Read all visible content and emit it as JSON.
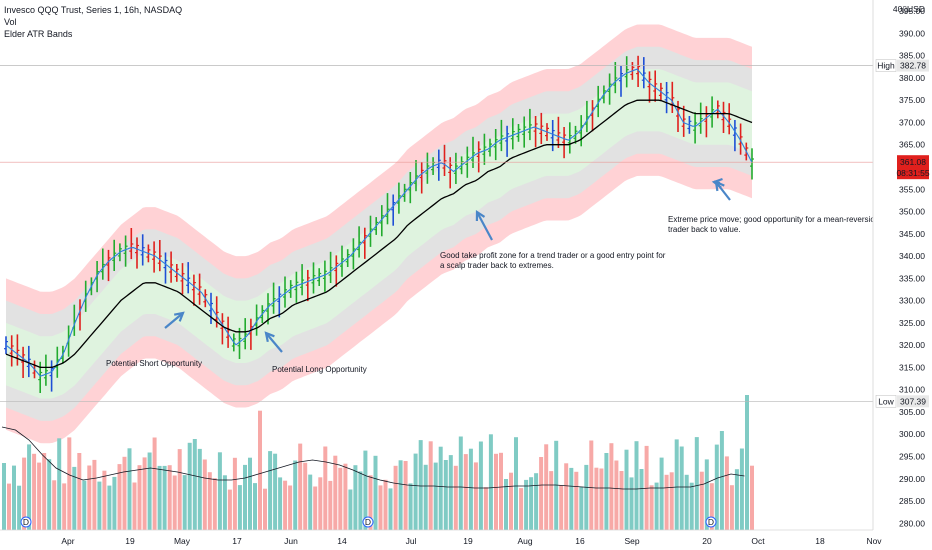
{
  "legend": {
    "symbol_line": "Invesco QQQ Trust, Series 1, 16h, NASDAQ",
    "indicator_1": "Vol",
    "indicator_2": "Elder ATR Bands"
  },
  "price_axis": {
    "currency": "USD",
    "currency_top_text": "40",
    "ticks": [
      390,
      385,
      380,
      375,
      370,
      365,
      360,
      355,
      350,
      345,
      340,
      335,
      330,
      325,
      320,
      315,
      310,
      305,
      300,
      295,
      290,
      285,
      280
    ],
    "top_cut_tick": "395.00",
    "range": [
      278.5,
      397.5
    ]
  },
  "markers": {
    "high_label": "High",
    "high_value": "382.78",
    "low_label": "Low",
    "low_value": "307.39",
    "last_price": "361.08",
    "countdown": "08:31:55"
  },
  "time_axis": {
    "labels": [
      "Apr",
      "19",
      "May",
      "17",
      "Jun",
      "14",
      "Jul",
      "19",
      "Aug",
      "16",
      "Sep",
      "20",
      "Oct",
      "18",
      "Nov"
    ]
  },
  "annotations": [
    {
      "text_lines": [
        "Potential Short Opportunity"
      ]
    },
    {
      "text_lines": [
        "Potential Long Opportunity"
      ]
    },
    {
      "text_lines": [
        "Good take profit zone for a trend trader or a good entry point for",
        "a scalp trader back to extremes."
      ]
    },
    {
      "text_lines": [
        "Extreme price move; good opportunity for a mean-reversion",
        "trader back to value."
      ]
    }
  ],
  "event_markers": [
    "D",
    "D",
    "D"
  ],
  "colors": {
    "up_bar": "#22ab2e",
    "down_bar": "#e0201d",
    "neutral_bar": "#1e4fd6",
    "ema_fast": "#2f7fe0",
    "ema_slow": "#000000",
    "band_inner": "#dff3df",
    "band_outer": "#ffcdd0",
    "band_gray": "#e2e2e2",
    "vol_up": "#80cbc4",
    "vol_down": "#f7a9a7",
    "arrow": "#4a86c8",
    "last_price_bg": "#e0201d"
  },
  "chart_data": {
    "type": "line",
    "series": [
      {
        "values": [
          320,
          318,
          316,
          313,
          314,
          318,
          325,
          331,
          336,
          339,
          341,
          342,
          341,
          340,
          338,
          336,
          334,
          332,
          328,
          324,
          320,
          322,
          326,
          329,
          331,
          333,
          334,
          335,
          336,
          338,
          340,
          343,
          346,
          349,
          352,
          355,
          358,
          360,
          361,
          359,
          361,
          363,
          364,
          366,
          367,
          368,
          369,
          368,
          367,
          366,
          368,
          372,
          376,
          379,
          381,
          382,
          379,
          377,
          375,
          370,
          369,
          371,
          373,
          370,
          366,
          361
        ]
      },
      {
        "values": [
          318,
          317,
          316,
          315,
          315,
          316,
          318,
          321,
          324,
          327,
          330,
          332,
          334,
          334,
          333,
          332,
          330,
          328,
          326,
          324,
          323,
          323,
          324,
          326,
          327,
          329,
          330,
          331,
          332,
          334,
          336,
          338,
          340,
          342,
          344,
          347,
          349,
          351,
          353,
          354,
          356,
          357,
          359,
          360,
          362,
          363,
          364,
          365,
          365,
          365,
          366,
          368,
          370,
          372,
          374,
          375,
          375,
          375,
          374,
          373,
          372,
          372,
          372,
          372,
          371,
          370
        ]
      }
    ]
  }
}
